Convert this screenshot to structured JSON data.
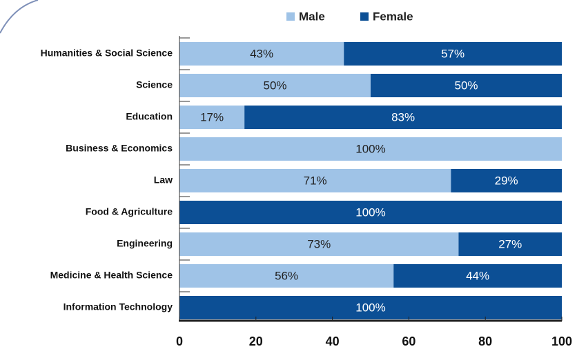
{
  "chart_data": {
    "type": "stacked-bar-horizontal",
    "categories": [
      "Humanities & Social Science",
      "Science",
      "Education",
      "Business & Economics",
      "Law",
      "Food & Agriculture",
      "Engineering",
      "Medicine & Health Science",
      "Information Technology"
    ],
    "series": [
      {
        "name": "Male",
        "color": "#9fc3e7",
        "label_color": "#222222",
        "values": [
          43,
          50,
          17,
          100,
          71,
          0,
          73,
          56,
          0
        ],
        "value_labels": [
          "43%",
          "50%",
          "17%",
          "100%",
          "71%",
          null,
          "73%",
          "56%",
          null
        ]
      },
      {
        "name": "Female",
        "color": "#0c4f95",
        "label_color": "#ffffff",
        "values": [
          57,
          50,
          83,
          0,
          29,
          100,
          27,
          44,
          100
        ],
        "value_labels": [
          "57%",
          "50%",
          "83%",
          null,
          "29%",
          "100%",
          "27%",
          "44%",
          "100%"
        ]
      }
    ],
    "xlim": [
      0,
      100
    ],
    "xticks": [
      0,
      20,
      40,
      60,
      80,
      100
    ],
    "legend": "top"
  }
}
